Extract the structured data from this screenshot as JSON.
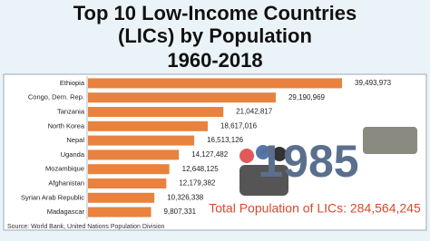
{
  "chart_data": {
    "type": "bar",
    "orientation": "horizontal",
    "title": "Top 10 Low-Income Countries (LICs) by Population",
    "subtitle": "1960-2018",
    "categories": [
      "Ethiopia",
      "Congo, Dem. Rep.",
      "Tanzania",
      "North Korea",
      "Nepal",
      "Uganda",
      "Mozambique",
      "Afghanistan",
      "Syrian Arab Republic",
      "Madagascar"
    ],
    "values": [
      39493973,
      29190969,
      21042817,
      18617016,
      16513126,
      14127482,
      12648125,
      12179382,
      10326338,
      9807331
    ],
    "value_labels": [
      "39,493,973",
      "29,190,969",
      "21,042,817",
      "18,617,016",
      "16,513,126",
      "14,127,482",
      "12,648,125",
      "12,179,382",
      "10,326,338",
      "9,807,331"
    ],
    "color": "#e8823e",
    "year": "1985",
    "total": "Total Population of LICs: 284,564,245",
    "source": "Source: World Bank, United Nations Population Division"
  }
}
